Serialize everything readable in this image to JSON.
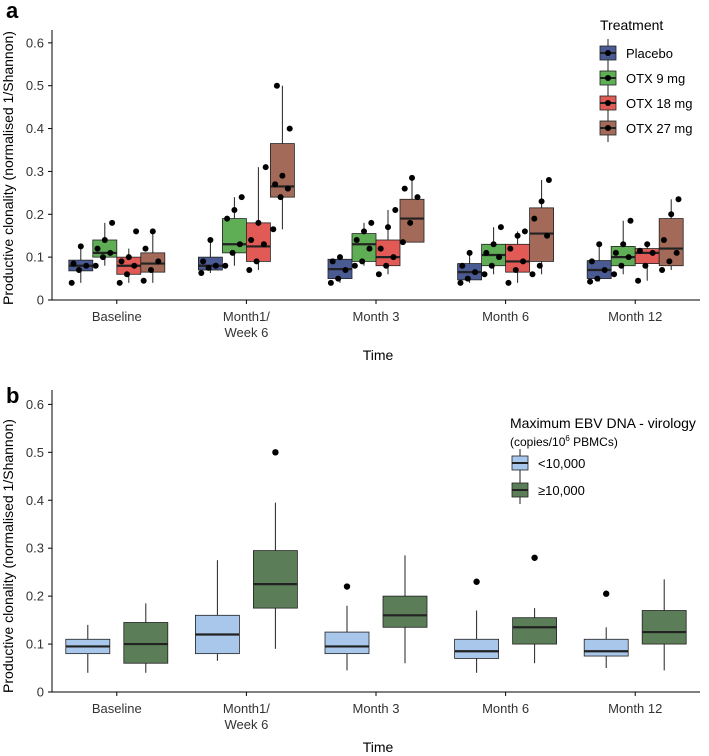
{
  "colors": {
    "placebo": "#4a5a93",
    "otx9": "#5fae55",
    "otx18": "#e25a55",
    "otx27": "#a36a59",
    "low": "#a9c7ea",
    "high": "#5b7d58"
  },
  "chart_data": [
    {
      "panel_label": "a",
      "type": "box",
      "ylabel": "Productive clonality (normalised 1/Shannon)",
      "xlabel": "Time",
      "ylim": [
        0,
        0.63
      ],
      "yticks": [
        0,
        0.1,
        0.2,
        0.3,
        0.4,
        0.5,
        0.6
      ],
      "ytick_labels": [
        "0",
        "0.1",
        "0.2",
        "0.3",
        "0.4",
        "0.5",
        "0.6"
      ],
      "categories": [
        "Baseline",
        "Month1/\nWeek 6",
        "Month 3",
        "Month 6",
        "Month 12"
      ],
      "legend_title": "Treatment",
      "series": [
        {
          "name": "Placebo",
          "color_key": "placebo",
          "boxes": [
            {
              "lo": 0.04,
              "q1": 0.068,
              "med": 0.08,
              "q3": 0.093,
              "hi": 0.125
            },
            {
              "lo": 0.063,
              "q1": 0.07,
              "med": 0.08,
              "q3": 0.1,
              "hi": 0.14
            },
            {
              "lo": 0.04,
              "q1": 0.05,
              "med": 0.072,
              "q3": 0.095,
              "hi": 0.1
            },
            {
              "lo": 0.04,
              "q1": 0.047,
              "med": 0.065,
              "q3": 0.085,
              "hi": 0.11
            },
            {
              "lo": 0.043,
              "q1": 0.05,
              "med": 0.07,
              "q3": 0.092,
              "hi": 0.13
            }
          ],
          "points": [
            [
              0.04,
              0.07,
              0.08,
              0.085,
              0.125
            ],
            [
              0.063,
              0.075,
              0.08,
              0.09,
              0.14
            ],
            [
              0.04,
              0.05,
              0.07,
              0.09,
              0.1
            ],
            [
              0.04,
              0.05,
              0.065,
              0.08,
              0.11
            ],
            [
              0.043,
              0.05,
              0.07,
              0.09,
              0.13
            ]
          ]
        },
        {
          "name": "OTX 9 mg",
          "color_key": "otx9",
          "boxes": [
            {
              "lo": 0.08,
              "q1": 0.1,
              "med": 0.11,
              "q3": 0.14,
              "hi": 0.18
            },
            {
              "lo": 0.08,
              "q1": 0.11,
              "med": 0.13,
              "q3": 0.19,
              "hi": 0.24
            },
            {
              "lo": 0.08,
              "q1": 0.09,
              "med": 0.13,
              "q3": 0.155,
              "hi": 0.18
            },
            {
              "lo": 0.06,
              "q1": 0.08,
              "med": 0.105,
              "q3": 0.13,
              "hi": 0.17
            },
            {
              "lo": 0.06,
              "q1": 0.08,
              "med": 0.1,
              "q3": 0.125,
              "hi": 0.185
            }
          ],
          "points": [
            [
              0.08,
              0.1,
              0.11,
              0.12,
              0.14,
              0.18
            ],
            [
              0.08,
              0.11,
              0.13,
              0.19,
              0.21,
              0.24
            ],
            [
              0.08,
              0.09,
              0.12,
              0.14,
              0.16,
              0.18
            ],
            [
              0.06,
              0.08,
              0.1,
              0.11,
              0.13,
              0.17
            ],
            [
              0.06,
              0.08,
              0.1,
              0.11,
              0.13,
              0.185
            ]
          ]
        },
        {
          "name": "OTX 18 mg",
          "color_key": "otx18",
          "boxes": [
            {
              "lo": 0.04,
              "q1": 0.06,
              "med": 0.08,
              "q3": 0.1,
              "hi": 0.12
            },
            {
              "lo": 0.07,
              "q1": 0.09,
              "med": 0.125,
              "q3": 0.18,
              "hi": 0.31
            },
            {
              "lo": 0.06,
              "q1": 0.08,
              "med": 0.1,
              "q3": 0.14,
              "hi": 0.21
            },
            {
              "lo": 0.04,
              "q1": 0.065,
              "med": 0.09,
              "q3": 0.13,
              "hi": 0.16
            },
            {
              "lo": 0.045,
              "q1": 0.085,
              "med": 0.11,
              "q3": 0.12,
              "hi": 0.13
            }
          ],
          "points": [
            [
              0.04,
              0.06,
              0.08,
              0.09,
              0.1,
              0.16
            ],
            [
              0.07,
              0.09,
              0.13,
              0.14,
              0.18,
              0.31
            ],
            [
              0.06,
              0.08,
              0.1,
              0.12,
              0.17,
              0.21
            ],
            [
              0.04,
              0.07,
              0.09,
              0.12,
              0.15,
              0.16
            ],
            [
              0.045,
              0.08,
              0.11,
              0.115,
              0.13
            ]
          ]
        },
        {
          "name": "OTX 27 mg",
          "color_key": "otx27",
          "boxes": [
            {
              "lo": 0.04,
              "q1": 0.065,
              "med": 0.085,
              "q3": 0.11,
              "hi": 0.16
            },
            {
              "lo": 0.165,
              "q1": 0.24,
              "med": 0.265,
              "q3": 0.365,
              "hi": 0.5
            },
            {
              "lo": 0.135,
              "q1": 0.135,
              "med": 0.19,
              "q3": 0.235,
              "hi": 0.285
            },
            {
              "lo": 0.06,
              "q1": 0.09,
              "med": 0.155,
              "q3": 0.215,
              "hi": 0.28
            },
            {
              "lo": 0.07,
              "q1": 0.08,
              "med": 0.12,
              "q3": 0.19,
              "hi": 0.235
            }
          ],
          "points": [
            [
              0.045,
              0.07,
              0.09,
              0.12,
              0.16
            ],
            [
              0.165,
              0.24,
              0.26,
              0.27,
              0.29,
              0.4,
              0.5
            ],
            [
              0.135,
              0.18,
              0.24,
              0.26,
              0.285
            ],
            [
              0.06,
              0.08,
              0.15,
              0.19,
              0.23,
              0.28
            ],
            [
              0.07,
              0.09,
              0.11,
              0.14,
              0.2,
              0.235
            ]
          ]
        }
      ]
    },
    {
      "panel_label": "b",
      "type": "box",
      "ylabel": "Productive clonality (normalised 1/Shannon)",
      "xlabel": "Time",
      "ylim": [
        0,
        0.63
      ],
      "yticks": [
        0,
        0.1,
        0.2,
        0.3,
        0.4,
        0.5,
        0.6
      ],
      "ytick_labels": [
        "0",
        "0.1",
        "0.2",
        "0.3",
        "0.4",
        "0.5",
        "0.6"
      ],
      "categories": [
        "Baseline",
        "Month1/\nWeek 6",
        "Month 3",
        "Month 6",
        "Month 12"
      ],
      "legend_title": "Maximum EBV DNA - virology",
      "legend_subtitle_pre": "(copies/10",
      "legend_subtitle_sup": "6",
      "legend_subtitle_post": " PBMCs)",
      "series": [
        {
          "name": "<10,000",
          "color_key": "low",
          "boxes": [
            {
              "lo": 0.04,
              "q1": 0.08,
              "med": 0.095,
              "q3": 0.11,
              "hi": 0.14
            },
            {
              "lo": 0.065,
              "q1": 0.08,
              "med": 0.12,
              "q3": 0.16,
              "hi": 0.275
            },
            {
              "lo": 0.045,
              "q1": 0.08,
              "med": 0.095,
              "q3": 0.125,
              "hi": 0.18
            },
            {
              "lo": 0.04,
              "q1": 0.07,
              "med": 0.085,
              "q3": 0.11,
              "hi": 0.17
            },
            {
              "lo": 0.05,
              "q1": 0.075,
              "med": 0.085,
              "q3": 0.11,
              "hi": 0.135
            }
          ],
          "outliers": [
            [],
            [],
            [
              0.22
            ],
            [
              0.23
            ],
            [
              0.205
            ]
          ]
        },
        {
          "name": "≥10,000",
          "color_key": "high",
          "boxes": [
            {
              "lo": 0.04,
              "q1": 0.06,
              "med": 0.1,
              "q3": 0.145,
              "hi": 0.185
            },
            {
              "lo": 0.09,
              "q1": 0.175,
              "med": 0.225,
              "q3": 0.295,
              "hi": 0.395
            },
            {
              "lo": 0.06,
              "q1": 0.135,
              "med": 0.16,
              "q3": 0.2,
              "hi": 0.285
            },
            {
              "lo": 0.06,
              "q1": 0.1,
              "med": 0.135,
              "q3": 0.155,
              "hi": 0.175
            },
            {
              "lo": 0.045,
              "q1": 0.1,
              "med": 0.125,
              "q3": 0.17,
              "hi": 0.235
            }
          ],
          "outliers": [
            [],
            [
              0.5
            ],
            [],
            [
              0.28
            ],
            []
          ]
        }
      ]
    }
  ]
}
